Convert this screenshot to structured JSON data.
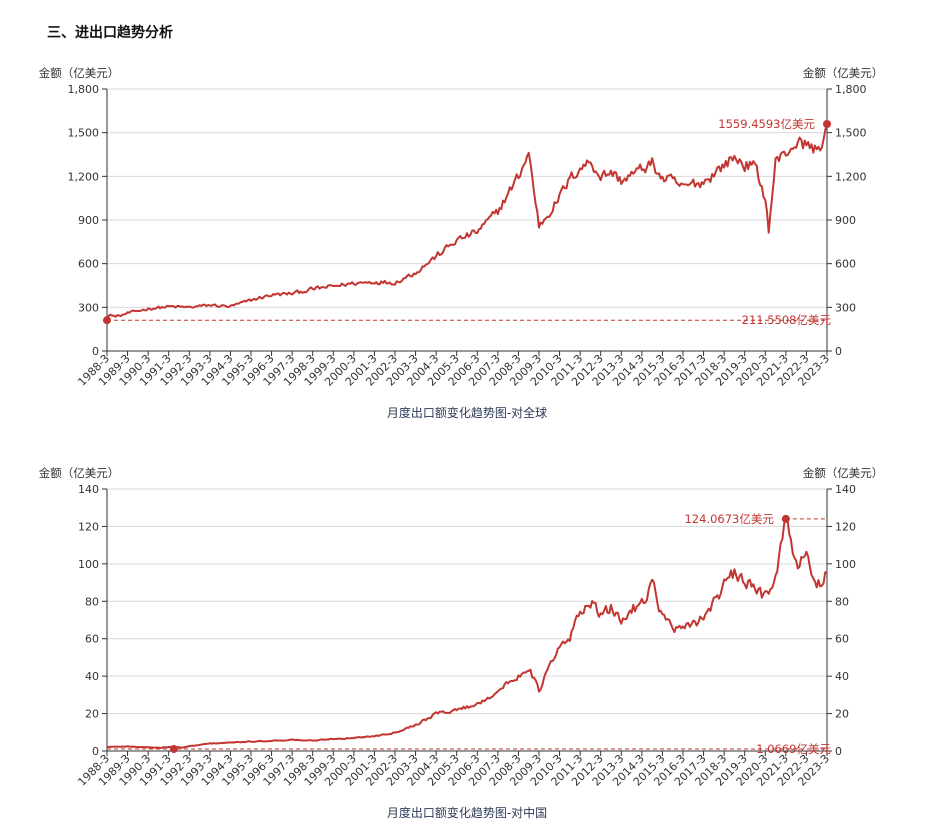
{
  "section": {
    "title": "三、进出口趋势分析"
  },
  "colors": {
    "line": "#c23531",
    "grid": "#d9d9d9",
    "axis": "#333333",
    "caption": "#2b3a55"
  },
  "chart_data": [
    {
      "type": "line",
      "caption": "月度出口额变化趋势图-对全球",
      "ylabel_left": "金额（亿美元）",
      "ylabel_right": "金额（亿美元）",
      "ylim": [
        0,
        1800
      ],
      "yticks": [
        0,
        300,
        600,
        900,
        1200,
        1500,
        1800
      ],
      "ytick_labels": [
        "0",
        "300",
        "600",
        "900",
        "1,200",
        "1,500",
        "1,800"
      ],
      "x_start": "1988-3",
      "x_end": "2023-3",
      "xtick_labels": [
        "1988-3",
        "1989-3",
        "1990-3",
        "1991-3",
        "1992-3",
        "1993-3",
        "1994-3",
        "1995-3",
        "1996-3",
        "1997-3",
        "1998-3",
        "1999-3",
        "2000-3",
        "2001-3",
        "2002-3",
        "2003-3",
        "2004-3",
        "2005-3",
        "2006-3",
        "2007-3",
        "2008-3",
        "2009-3",
        "2010-3",
        "2011-3",
        "2012-3",
        "2013-3",
        "2014-3",
        "2015-3",
        "2016-3",
        "2017-3",
        "2018-3",
        "2019-3",
        "2020-3",
        "2021-3",
        "2022-3",
        "2023-3"
      ],
      "key_points": [
        [
          "1988-3",
          211.5508
        ],
        [
          "1989-3",
          260
        ],
        [
          "1990-3",
          290
        ],
        [
          "1991-3",
          305
        ],
        [
          "1992-3",
          300
        ],
        [
          "1993-3",
          315
        ],
        [
          "1994-3",
          305
        ],
        [
          "1995-3",
          350
        ],
        [
          "1996-3",
          385
        ],
        [
          "1997-3",
          395
        ],
        [
          "1998-3",
          425
        ],
        [
          "1999-3",
          445
        ],
        [
          "2000-3",
          465
        ],
        [
          "2001-3",
          475
        ],
        [
          "2002-3",
          470
        ],
        [
          "2003-3",
          540
        ],
        [
          "2004-3",
          650
        ],
        [
          "2005-3",
          760
        ],
        [
          "2006-3",
          820
        ],
        [
          "2007-3",
          960
        ],
        [
          "2007-9",
          1080
        ],
        [
          "2008-3",
          1200
        ],
        [
          "2008-9",
          1360
        ],
        [
          "2009-3",
          860
        ],
        [
          "2009-9",
          950
        ],
        [
          "2010-3",
          1060
        ],
        [
          "2010-9",
          1180
        ],
        [
          "2011-3",
          1260
        ],
        [
          "2011-9",
          1300
        ],
        [
          "2012-3",
          1200
        ],
        [
          "2012-9",
          1230
        ],
        [
          "2013-3",
          1170
        ],
        [
          "2013-9",
          1210
        ],
        [
          "2014-3",
          1250
        ],
        [
          "2014-9",
          1290
        ],
        [
          "2015-3",
          1180
        ],
        [
          "2015-9",
          1170
        ],
        [
          "2016-3",
          1120
        ],
        [
          "2016-9",
          1150
        ],
        [
          "2017-3",
          1160
        ],
        [
          "2017-9",
          1220
        ],
        [
          "2018-3",
          1280
        ],
        [
          "2018-9",
          1330
        ],
        [
          "2019-3",
          1280
        ],
        [
          "2019-9",
          1270
        ],
        [
          "2020-3",
          1050
        ],
        [
          "2020-5",
          830
        ],
        [
          "2020-9",
          1300
        ],
        [
          "2021-3",
          1360
        ],
        [
          "2021-9",
          1430
        ],
        [
          "2022-3",
          1420
        ],
        [
          "2022-9",
          1380
        ],
        [
          "2023-1",
          1450
        ],
        [
          "2023-3",
          1559.4593
        ]
      ],
      "annotations": {
        "max": {
          "x": "2023-3",
          "value": 1559.4593,
          "label": "1559.4593亿美元"
        },
        "min": {
          "x": "1988-3",
          "value": 211.5508,
          "label": "211.5508亿美元"
        }
      }
    },
    {
      "type": "line",
      "caption": "月度出口额变化趋势图-对中国",
      "ylabel_left": "金额（亿美元）",
      "ylabel_right": "金额（亿美元）",
      "ylim": [
        0,
        140
      ],
      "yticks": [
        0,
        20,
        40,
        60,
        80,
        100,
        120,
        140
      ],
      "ytick_labels": [
        "0",
        "20",
        "40",
        "60",
        "80",
        "100",
        "120",
        "140"
      ],
      "x_start": "1988-3",
      "x_end": "2023-3",
      "xtick_labels": [
        "1988-3",
        "1989-3",
        "1990-3",
        "1991-3",
        "1992-3",
        "1993-3",
        "1994-3",
        "1995-3",
        "1996-3",
        "1997-3",
        "1998-3",
        "1999-3",
        "2000-3",
        "2001-3",
        "2002-3",
        "2003-3",
        "2004-3",
        "2005-3",
        "2006-3",
        "2007-3",
        "2008-3",
        "2009-3",
        "2010-3",
        "2011-3",
        "2012-3",
        "2013-3",
        "2014-3",
        "2015-3",
        "2016-3",
        "2017-3",
        "2018-3",
        "2019-3",
        "2020-3",
        "2021-3",
        "2022-3",
        "2023-3"
      ],
      "key_points": [
        [
          "1988-3",
          2.2
        ],
        [
          "1989-3",
          2.4
        ],
        [
          "1990-3",
          2.0
        ],
        [
          "1991-3",
          1.5
        ],
        [
          "1991-6",
          1.0669
        ],
        [
          "1992-3",
          2.5
        ],
        [
          "1993-3",
          4.0
        ],
        [
          "1994-3",
          4.5
        ],
        [
          "1995-3",
          5.0
        ],
        [
          "1996-3",
          5.5
        ],
        [
          "1997-3",
          6.0
        ],
        [
          "1998-3",
          5.5
        ],
        [
          "1999-3",
          6.5
        ],
        [
          "2000-3",
          7.0
        ],
        [
          "2001-3",
          8.0
        ],
        [
          "2002-3",
          10.0
        ],
        [
          "2003-3",
          14.0
        ],
        [
          "2004-3",
          20.0
        ],
        [
          "2005-3",
          22.0
        ],
        [
          "2006-3",
          25.0
        ],
        [
          "2007-3",
          32.0
        ],
        [
          "2008-3",
          40.0
        ],
        [
          "2008-9",
          45.0
        ],
        [
          "2009-3",
          32.0
        ],
        [
          "2009-9",
          45.0
        ],
        [
          "2010-3",
          55.0
        ],
        [
          "2010-9",
          60.0
        ],
        [
          "2011-3",
          75.0
        ],
        [
          "2011-9",
          80.0
        ],
        [
          "2012-3",
          72.0
        ],
        [
          "2012-9",
          76.0
        ],
        [
          "2013-3",
          70.0
        ],
        [
          "2013-9",
          75.0
        ],
        [
          "2014-3",
          80.0
        ],
        [
          "2014-9",
          90.0
        ],
        [
          "2015-3",
          72.0
        ],
        [
          "2015-9",
          66.0
        ],
        [
          "2016-3",
          64.0
        ],
        [
          "2016-9",
          68.0
        ],
        [
          "2017-3",
          72.0
        ],
        [
          "2017-9",
          80.0
        ],
        [
          "2018-3",
          88.0
        ],
        [
          "2018-9",
          95.0
        ],
        [
          "2019-3",
          90.0
        ],
        [
          "2019-9",
          86.0
        ],
        [
          "2020-3",
          83.0
        ],
        [
          "2020-9",
          95.0
        ],
        [
          "2021-3",
          124.0673
        ],
        [
          "2021-7",
          105.0
        ],
        [
          "2021-11",
          100.0
        ],
        [
          "2022-3",
          103.0
        ],
        [
          "2022-7",
          95.0
        ],
        [
          "2022-11",
          88.0
        ],
        [
          "2023-3",
          94.0
        ]
      ],
      "annotations": {
        "max": {
          "x": "2021-3",
          "value": 124.0673,
          "label": "124.0673亿美元"
        },
        "min": {
          "x": "1991-6",
          "value": 1.0669,
          "label": "1.0669亿美元"
        }
      }
    }
  ]
}
